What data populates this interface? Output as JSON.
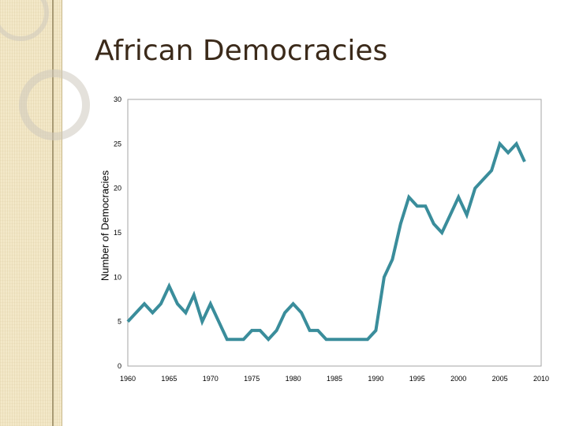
{
  "slide": {
    "title": "African Democracies"
  },
  "chart_data": {
    "type": "line",
    "title": "",
    "xlabel": "",
    "ylabel": "Number of Democracies",
    "xlim": [
      1960,
      2010
    ],
    "ylim": [
      0,
      30
    ],
    "x_ticks": [
      1960,
      1965,
      1970,
      1975,
      1980,
      1985,
      1990,
      1995,
      2000,
      2005,
      2010
    ],
    "y_ticks": [
      0,
      5,
      10,
      15,
      20,
      25,
      30
    ],
    "grid": false,
    "legend": "none",
    "line_color": "#3a8d9b",
    "series": [
      {
        "x": [
          1960,
          1961,
          1962,
          1963,
          1964,
          1965,
          1966,
          1967,
          1968,
          1969,
          1970,
          1971,
          1972,
          1973,
          1974,
          1975,
          1976,
          1977,
          1978,
          1979,
          1980,
          1981,
          1982,
          1983,
          1984,
          1985,
          1986,
          1987,
          1988,
          1989,
          1990,
          1991,
          1992,
          1993,
          1994,
          1995,
          1996,
          1997,
          1998,
          1999,
          2000,
          2001,
          2002,
          2003,
          2004,
          2005,
          2006,
          2007,
          2008
        ],
        "values": [
          5,
          6,
          7,
          6,
          7,
          9,
          7,
          6,
          8,
          5,
          7,
          5,
          3,
          3,
          3,
          4,
          4,
          3,
          4,
          6,
          7,
          6,
          4,
          4,
          3,
          3,
          3,
          3,
          3,
          3,
          4,
          10,
          12,
          16,
          19,
          18,
          18,
          16,
          15,
          17,
          19,
          17,
          20,
          21,
          22,
          25,
          24,
          25,
          23
        ]
      }
    ]
  }
}
